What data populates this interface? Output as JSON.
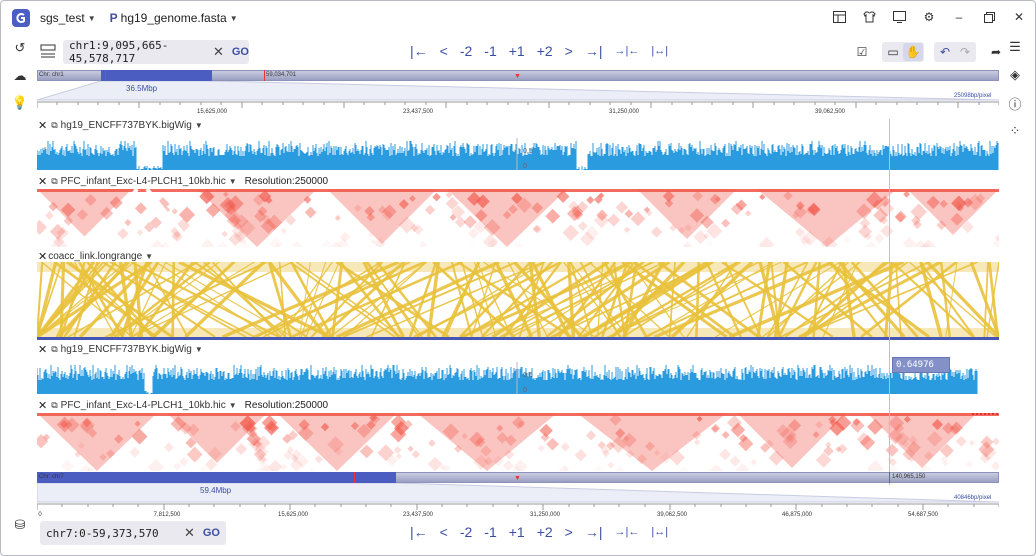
{
  "titlebar": {
    "project": "sgs_test",
    "genome": "hg19_genome.fasta",
    "genome_prefix": "P"
  },
  "top_panel": {
    "locus": "chr1:9,095,665-45,578,717",
    "go_label": "GO",
    "nav": [
      "|←",
      "<",
      "-2",
      "-1",
      "+1",
      "+2",
      ">",
      "→|",
      "→|←",
      "|↔|"
    ],
    "chrom_label": "Chr: chr1",
    "chrom_end_label": "59,034,701",
    "selection_size": "36.5Mbp",
    "resolution_label": "25098bp/pixel",
    "ticks": [
      "15,625,000",
      "23,437,500",
      "31,250,000",
      "39,062,500"
    ]
  },
  "tracks": [
    {
      "name": "hg19_ENCFF737BYK.bigWig",
      "axis_mid": "0.5",
      "axis_zero": "0"
    },
    {
      "name": "PFC_infant_Exc-L4-PLCH1_10kb.hic",
      "resolution": "Resolution:250000"
    },
    {
      "name": "coacc_link.longrange"
    },
    {
      "name": "hg19_ENCFF737BYK.bigWig",
      "axis_mid": "0.5",
      "axis_zero": "0"
    },
    {
      "name": "PFC_infant_Exc-L4-PLCH1_10kb.hic",
      "resolution": "Resolution:250000"
    }
  ],
  "tooltip_value": "0.64976",
  "bottom_panel": {
    "locus": "chr7:0-59,373,570",
    "go_label": "GO",
    "nav": [
      "|←",
      "<",
      "-2",
      "-1",
      "+1",
      "+2",
      ">",
      "→|",
      "→|←",
      "|↔|"
    ],
    "chrom_label": "Chr: chr7",
    "chrom_end_label": "140,965,150",
    "selection_size": "59.4Mbp",
    "resolution_label": "40846bp/pixel",
    "ticks": [
      "0",
      "7,812,500",
      "15,625,000",
      "23,437,500",
      "31,250,000",
      "39,062,500",
      "46,875,000",
      "54,687,500"
    ]
  },
  "colors": {
    "accent": "#3b4ea6",
    "bigwig": "#2b9be0",
    "hic": "#f25a4c",
    "link": "#e9c23c",
    "chrom_sel": "#4b5dc0"
  }
}
